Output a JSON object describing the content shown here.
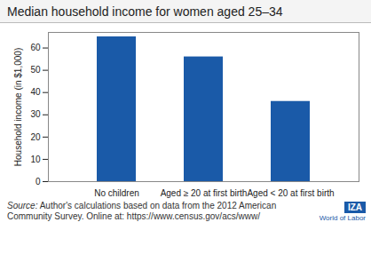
{
  "chart_data": {
    "type": "bar",
    "title": "Median household income for women aged 25–34",
    "ylabel": "Household income (in $1,000)",
    "categories": [
      "No children",
      "Aged ≥ 20 at first birth",
      "Aged < 20 at first birth"
    ],
    "values": [
      65,
      56,
      36
    ],
    "color": "#1a5aa8",
    "ylim": [
      0,
      67
    ],
    "yticks": [
      0,
      10,
      20,
      30,
      40,
      50,
      60
    ],
    "grid": false,
    "source_label": "Source:",
    "source": "Author's calculations based on data from the 2012 American Community Survey. Online at: https://www.census.gov/acs/www/",
    "annotations": [
      "IZA",
      "World of Labor"
    ]
  }
}
